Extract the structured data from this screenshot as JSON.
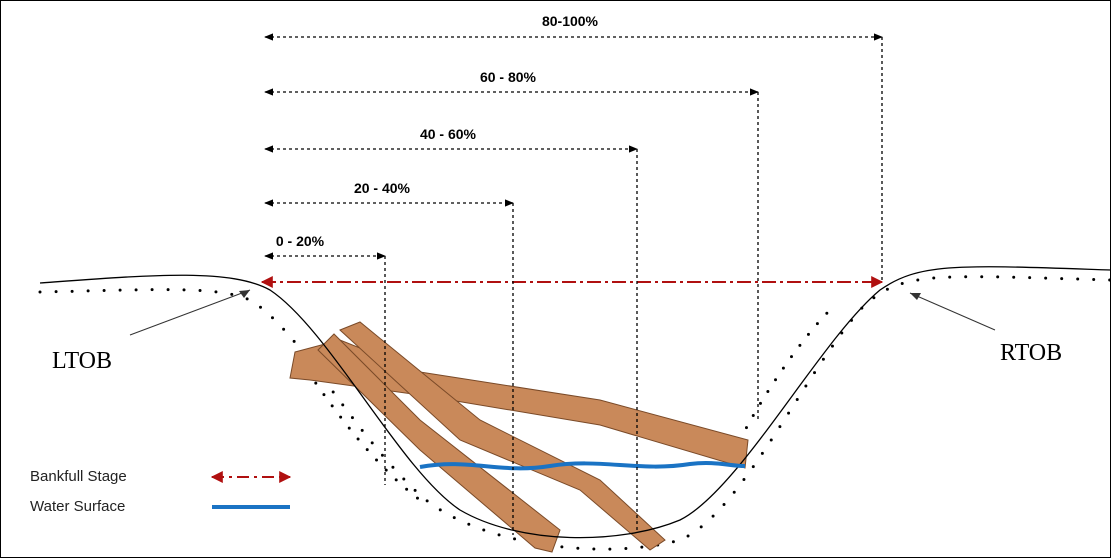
{
  "ranges": [
    "80-100%",
    "60 - 80%",
    "40 - 60%",
    "20 - 40%",
    "0 - 20%"
  ],
  "banks": {
    "left": "LTOB",
    "right": "RTOB"
  },
  "legend": {
    "bankfull": "Bankfull Stage",
    "water": "Water Surface"
  }
}
